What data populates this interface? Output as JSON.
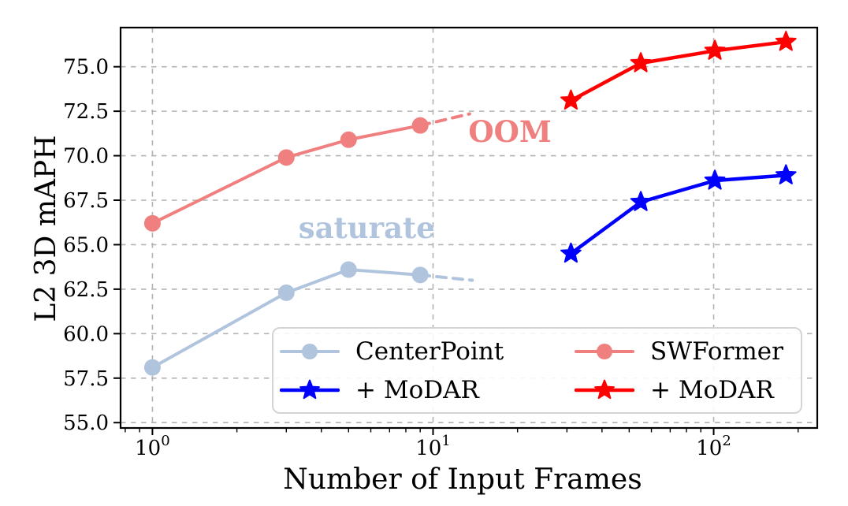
{
  "chart_data": {
    "type": "line",
    "title": "",
    "xlabel": "Number of Input Frames",
    "ylabel": "L2 3D mAPH",
    "x_scale": "log",
    "xlim": [
      0.77,
      234
    ],
    "ylim": [
      54.7,
      77.2
    ],
    "grid": {
      "show": true,
      "color": "#b3b3b3",
      "dash": "6.5 6.5",
      "line_width": 1.6
    },
    "x_major_ticks": [
      {
        "value": 1,
        "base": "10",
        "exponent": "0"
      },
      {
        "value": 10,
        "base": "10",
        "exponent": "1"
      },
      {
        "value": 100,
        "base": "10",
        "exponent": "2"
      }
    ],
    "x_minor_ticks": [
      0.8,
      0.9,
      2,
      3,
      4,
      5,
      6,
      7,
      8,
      9,
      20,
      30,
      40,
      50,
      60,
      70,
      80,
      90,
      200
    ],
    "y_ticks": [
      {
        "value": 55.0,
        "label": "55.0"
      },
      {
        "value": 57.5,
        "label": "57.5"
      },
      {
        "value": 60.0,
        "label": "60.0"
      },
      {
        "value": 62.5,
        "label": "62.5"
      },
      {
        "value": 65.0,
        "label": "65.0"
      },
      {
        "value": 67.5,
        "label": "67.5"
      },
      {
        "value": 70.0,
        "label": "70.0"
      },
      {
        "value": 72.5,
        "label": "72.5"
      },
      {
        "value": 75.0,
        "label": "75.0"
      }
    ],
    "series": [
      {
        "name": "CenterPoint",
        "color": "#b0c4de",
        "marker": "circle",
        "marker_size": 10.5,
        "line_width": 4,
        "x": [
          1,
          3,
          5,
          9
        ],
        "y": [
          58.1,
          62.3,
          63.6,
          63.3
        ],
        "dashed_tail": {
          "x": [
            9,
            13.8
          ],
          "y": [
            63.3,
            63.0
          ]
        }
      },
      {
        "name": "SWFormer",
        "color": "#f08080",
        "marker": "circle",
        "marker_size": 10.5,
        "line_width": 4,
        "x": [
          1,
          3,
          5,
          9
        ],
        "y": [
          66.2,
          69.9,
          70.9,
          71.7
        ],
        "dashed_tail": {
          "x": [
            9,
            13.5
          ],
          "y": [
            71.7,
            72.35
          ]
        }
      },
      {
        "name": "+ MoDAR",
        "color": "#0000ff",
        "marker": "star",
        "marker_size": 13,
        "line_width": 4.5,
        "x": [
          31,
          55,
          101,
          181
        ],
        "y": [
          64.5,
          67.4,
          68.6,
          68.9
        ]
      },
      {
        "name": "+ MoDAR",
        "color": "#ff0000",
        "marker": "star",
        "marker_size": 13,
        "line_width": 4.5,
        "x": [
          31,
          55,
          101,
          181
        ],
        "y": [
          73.1,
          75.2,
          75.9,
          76.4
        ]
      }
    ],
    "annotations": [
      {
        "text": "saturate",
        "x": 5.8,
        "y": 65.8,
        "color": "#b0c4de"
      },
      {
        "text": "OOM",
        "x": 18.8,
        "y": 71.2,
        "color": "#f08080"
      }
    ],
    "legend": {
      "position": "lower-right",
      "columns": 2,
      "entries": [
        {
          "label": "CenterPoint",
          "series": 0
        },
        {
          "label": "+ MoDAR",
          "series": 2
        },
        {
          "label": "SWFormer",
          "series": 1
        },
        {
          "label": "+ MoDAR",
          "series": 3
        }
      ]
    },
    "axis_color": "#000000"
  }
}
